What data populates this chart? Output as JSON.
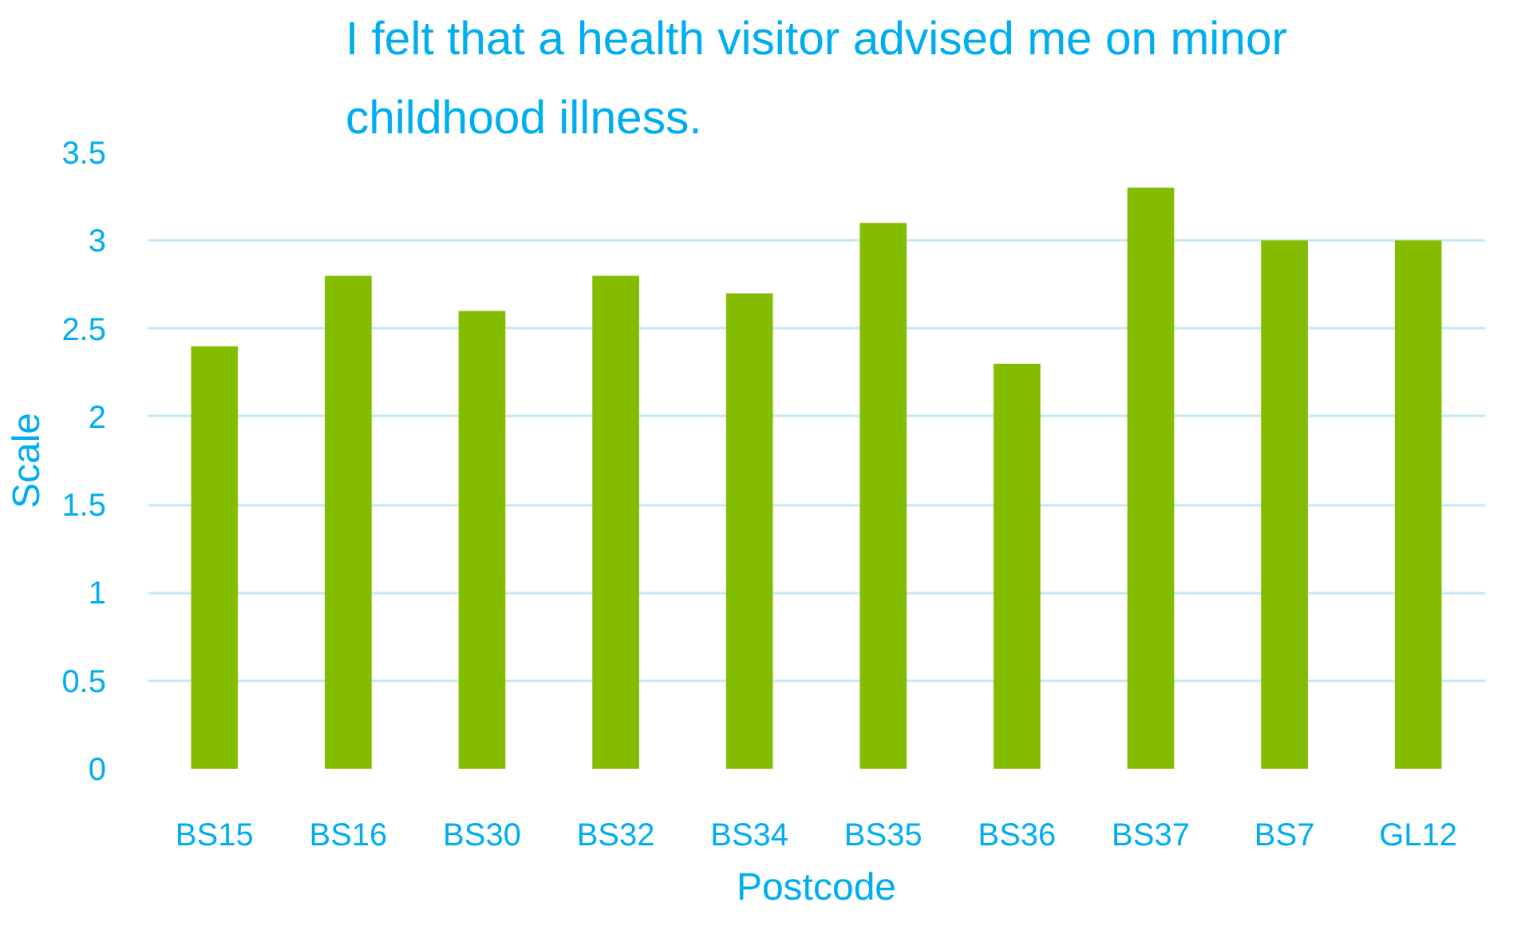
{
  "chart_data": {
    "type": "bar",
    "title": "I felt that a health visitor advised me on minor childhood illness.",
    "xlabel": "Postcode",
    "ylabel": "Scale",
    "categories": [
      "BS15",
      "BS16",
      "BS30",
      "BS32",
      "BS34",
      "BS35",
      "BS36",
      "BS37",
      "BS7",
      "GL12"
    ],
    "values": [
      2.4,
      2.8,
      2.6,
      2.8,
      2.7,
      3.1,
      2.3,
      3.3,
      3.0,
      3.0
    ],
    "color": "#84bd00",
    "ylim": [
      0,
      3.5
    ],
    "yticks": [
      0,
      0.5,
      1,
      1.5,
      2,
      2.5,
      3,
      3.5
    ],
    "grid": "y"
  }
}
